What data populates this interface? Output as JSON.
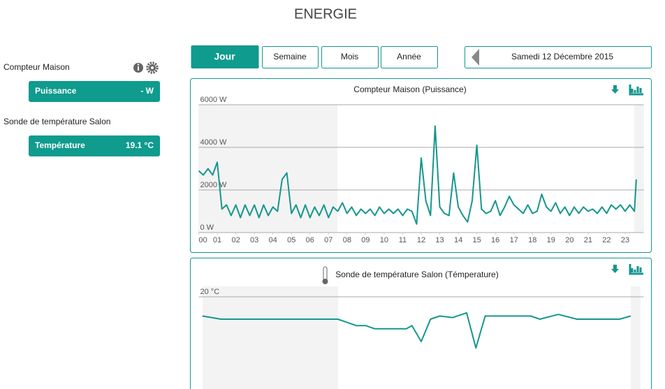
{
  "header": {
    "title": "ENERGIE"
  },
  "sidebar": {
    "devices": [
      {
        "name": "Compteur Maison",
        "button": {
          "label": "Puissance",
          "value": "- W"
        }
      },
      {
        "name": "Sonde de température Salon",
        "button": {
          "label": "Température",
          "value": "19.1 °C"
        }
      }
    ]
  },
  "tabs": [
    "Jour",
    "Semaine",
    "Mois",
    "Année"
  ],
  "active_tab": 0,
  "date": "Samedi 12 Décembre 2015",
  "chart_data": [
    {
      "type": "line",
      "title": "Compteur Maison (Puissance)",
      "color": "#16968e",
      "grid": true,
      "x": [
        0,
        0.25,
        0.5,
        0.75,
        1,
        1.25,
        1.5,
        1.75,
        2,
        2.25,
        2.5,
        2.75,
        3,
        3.25,
        3.5,
        3.75,
        4,
        4.25,
        4.5,
        4.75,
        5,
        5.25,
        5.5,
        5.75,
        6,
        6.25,
        6.5,
        6.75,
        7,
        7.25,
        7.5,
        7.75,
        8,
        8.25,
        8.5,
        8.75,
        9,
        9.25,
        9.5,
        9.75,
        10,
        10.25,
        10.5,
        10.75,
        11,
        11.25,
        11.5,
        11.75,
        12,
        12.25,
        12.5,
        12.75,
        13,
        13.25,
        13.5,
        13.75,
        14,
        14.25,
        14.5,
        14.75,
        15,
        15.25,
        15.5,
        15.75,
        16,
        16.25,
        16.5,
        16.75,
        17,
        17.25,
        17.5,
        17.75,
        18,
        18.25,
        18.5,
        18.75,
        19,
        19.25,
        19.5,
        19.75,
        20,
        20.25,
        20.5,
        20.75,
        21,
        21.25,
        21.5,
        21.75,
        22,
        22.25,
        22.5,
        22.75,
        23,
        23.25,
        23.5,
        23.6
      ],
      "values": [
        2900,
        2700,
        3000,
        2700,
        3300,
        1100,
        1300,
        800,
        1300,
        700,
        1300,
        800,
        1300,
        700,
        1300,
        800,
        1200,
        1000,
        2500,
        2800,
        900,
        1300,
        700,
        1300,
        700,
        1200,
        800,
        1300,
        700,
        1200,
        1000,
        1400,
        900,
        1200,
        800,
        1100,
        900,
        1100,
        800,
        1200,
        900,
        1100,
        900,
        1100,
        800,
        1100,
        1000,
        400,
        3500,
        1500,
        800,
        5000,
        1200,
        900,
        800,
        2800,
        1200,
        800,
        500,
        1500,
        4100,
        1100,
        900,
        1000,
        1500,
        800,
        1200,
        1700,
        1300,
        1100,
        900,
        1300,
        900,
        1000,
        1800,
        1200,
        1000,
        1400,
        900,
        1200,
        800,
        1200,
        900,
        1200,
        1000,
        1100,
        900,
        1200,
        900,
        1300,
        1100,
        1300,
        1000,
        1300,
        1000,
        2500
      ],
      "xlim": [
        0,
        24
      ],
      "xticks": [
        {
          "value": 0,
          "label": "00"
        },
        {
          "value": 1,
          "label": "01"
        },
        {
          "value": 2,
          "label": "02"
        },
        {
          "value": 3,
          "label": "03"
        },
        {
          "value": 4,
          "label": "04"
        },
        {
          "value": 5,
          "label": "05"
        },
        {
          "value": 6,
          "label": "06"
        },
        {
          "value": 7,
          "label": "07"
        },
        {
          "value": 8,
          "label": "08"
        },
        {
          "value": 9,
          "label": "09"
        },
        10,
        11,
        12,
        13,
        14,
        15,
        16,
        17,
        18,
        19,
        20,
        21,
        22,
        23
      ],
      "ylim": [
        0,
        6000
      ],
      "yticks": [
        {
          "value": 0,
          "label": "0 W"
        },
        {
          "value": 2000,
          "label": "2000 W"
        },
        {
          "value": 4000,
          "label": "4000 W"
        },
        {
          "value": 6000,
          "label": "6000 W"
        }
      ]
    },
    {
      "type": "line",
      "title": "Sonde de température Salon (Témperature)",
      "color": "#16968e",
      "grid": true,
      "x": [
        0.2,
        1.2,
        7.5,
        8,
        8.5,
        9,
        9.5,
        11.2,
        11.5,
        12,
        12.5,
        13,
        13.7,
        14.45,
        14.95,
        15.45,
        17.9,
        18.4,
        19.4,
        20.4,
        22.7,
        23.3
      ],
      "values": [
        19.4,
        19.3,
        19.3,
        19.2,
        19.1,
        19.1,
        19,
        19,
        19.1,
        18.6,
        19.3,
        19.4,
        19.35,
        19.5,
        18.4,
        19.4,
        19.4,
        19.3,
        19.45,
        19.3,
        19.3,
        19.4
      ],
      "xlim": [
        0,
        24
      ],
      "ylim": [
        16,
        20
      ],
      "yticks": [
        {
          "value": 20,
          "label": "20 °C"
        }
      ]
    }
  ]
}
